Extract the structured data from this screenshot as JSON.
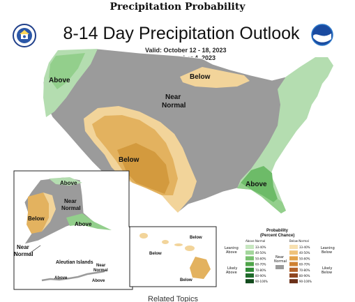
{
  "page": {
    "heading": "Precipitation Probability",
    "related_partial": "Related Topics"
  },
  "map": {
    "title": "8-14 Day Precipitation Outlook",
    "valid_line": "Valid:  October 12 - 18, 2023",
    "issued_line": "Issued:  October 4, 2023",
    "labels": {
      "above_west": "Above",
      "below_north": "Below",
      "near_normal_center_1": "Near",
      "near_normal_center_2": "Normal",
      "below_southwest": "Below",
      "above_southeast": "Above",
      "ak_above_north": "Above",
      "ak_near_1": "Near",
      "ak_near_2": "Normal",
      "ak_below": "Below",
      "ak_above_south": "Above",
      "ak_near_sw_1": "Near",
      "ak_near_sw_2": "Normal",
      "aleutian_title": "Aleutian Islands",
      "aleutian_near_1": "Near",
      "aleutian_near_2": "Normal",
      "aleutian_above_1": "Above",
      "aleutian_above_2": "Above",
      "hi_below_1": "Below",
      "hi_below_2": "Below",
      "hi_below_3": "Below"
    },
    "colors": {
      "near_normal": "#9b9b9b",
      "above_leaning": "#b4ddb0",
      "above_40": "#93cf8c",
      "above_50": "#6dbb68",
      "below_leaning": "#f2d49a",
      "below_40": "#e3b25f",
      "below_50": "#d39a3e"
    }
  },
  "legend": {
    "title_1": "Probability",
    "title_2": "(Percent Chance)",
    "col_above": "Above Normal",
    "col_below": "Below Normal",
    "near_label_1": "Near",
    "near_label_2": "Normal",
    "leaning_above_1": "Leaning",
    "leaning_above_2": "Above",
    "likely_above_1": "Likely",
    "likely_above_2": "Above",
    "leaning_below_1": "Leaning",
    "leaning_below_2": "Below",
    "likely_below_1": "Likely",
    "likely_below_2": "Below",
    "ranges": [
      "33-40%",
      "40-50%",
      "50-60%",
      "60-70%",
      "70-80%",
      "80-90%",
      "90-100%"
    ],
    "above_colors": [
      "#c7e7c0",
      "#a3d69b",
      "#78c06f",
      "#4fa54a",
      "#2f8a35",
      "#1f6b2a",
      "#114a1c"
    ],
    "below_colors": [
      "#f7e0b0",
      "#efc27a",
      "#e2a24a",
      "#cf8132",
      "#b3622a",
      "#8f4722",
      "#6a2f18"
    ]
  }
}
